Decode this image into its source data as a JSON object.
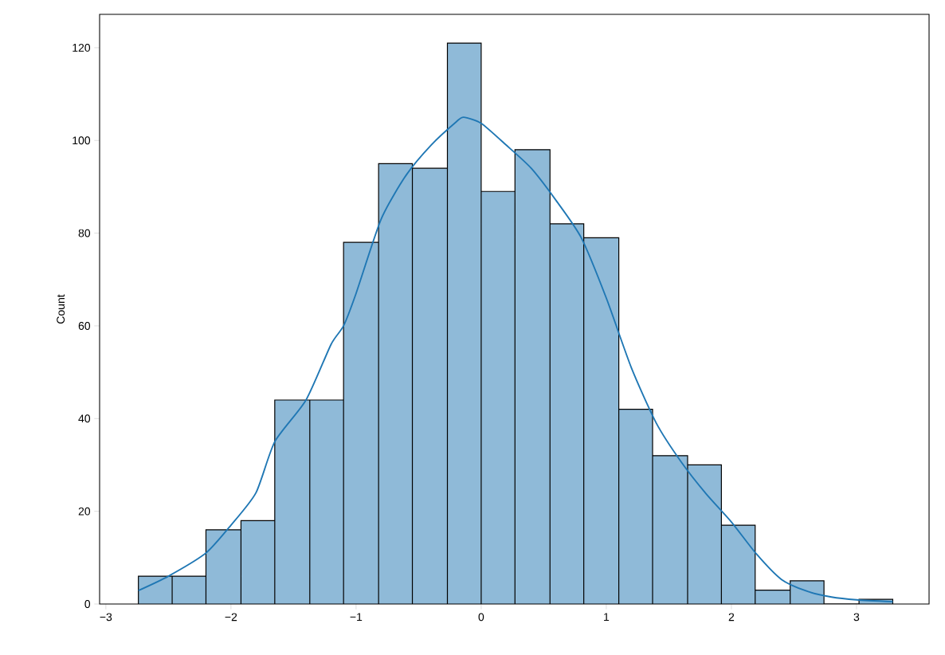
{
  "chart_data": {
    "type": "histogram",
    "ylabel": "Count",
    "xlim": [
      -3.05,
      3.58
    ],
    "ylim": [
      0,
      127.2
    ],
    "xticks": [
      {
        "value": -3,
        "label": "−3"
      },
      {
        "value": -2,
        "label": "−2"
      },
      {
        "value": -1,
        "label": "−1"
      },
      0,
      1,
      2,
      3
    ],
    "yticks": [
      0,
      20,
      40,
      60,
      80,
      100,
      120
    ],
    "series": [
      {
        "color": "#8fbad8",
        "bins": [
          -2.74,
          -2.47,
          -2.2,
          -1.92,
          -1.65,
          -1.37,
          -1.1,
          -0.82,
          -0.55,
          -0.27,
          0,
          0.27,
          0.55,
          0.82,
          1.1,
          1.37,
          1.65,
          1.92,
          2.19,
          2.47,
          2.74,
          3.02,
          3.29
        ],
        "values": [
          6,
          6,
          16,
          18,
          44,
          44,
          78,
          95,
          94,
          121,
          89,
          98,
          82,
          79,
          42,
          32,
          30,
          17,
          3,
          5,
          0,
          1
        ]
      },
      {
        "type": "line",
        "color": "#1f77b4",
        "x": [
          -2.74,
          -2.5,
          -2.2,
          -2.0,
          -1.8,
          -1.65,
          -1.4,
          -1.2,
          -1.1,
          -1.0,
          -0.8,
          -0.6,
          -0.4,
          -0.2,
          -0.14,
          0,
          0.2,
          0.4,
          0.6,
          0.8,
          1.0,
          1.2,
          1.4,
          1.6,
          1.8,
          2.0,
          2.2,
          2.4,
          2.6,
          2.8,
          3.0,
          3.29
        ],
        "values": [
          2.9,
          6,
          11,
          17,
          24,
          35,
          44,
          56,
          60,
          67,
          83,
          92.5,
          99,
          104,
          105,
          103.7,
          99,
          94,
          87,
          79,
          66,
          51,
          39,
          30.6,
          23.7,
          17.7,
          10.8,
          5.3,
          2.8,
          1.5,
          0.9,
          0.5
        ]
      }
    ]
  }
}
